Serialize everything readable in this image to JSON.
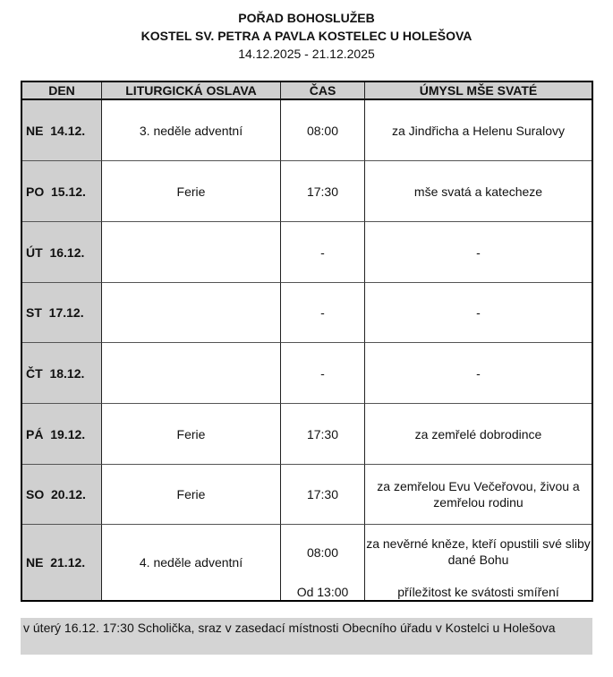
{
  "header": {
    "title": "POŘAD BOHOSLUŽEB",
    "church": "KOSTEL SV. PETRA A PAVLA KOSTELEC U HOLEŠOVA",
    "dates": "14.12.2025 - 21.12.2025"
  },
  "columns": [
    "DEN",
    "LITURGICKÁ OSLAVA",
    "ČAS",
    "ÚMYSL MŠE SVATÉ"
  ],
  "rows": [
    {
      "day": "NE  14.12.",
      "celebration": "3. neděle adventní",
      "time": "08:00",
      "intention": "za Jindřicha a Helenu Suralovy"
    },
    {
      "day": "PO  15.12.",
      "celebration": "Ferie",
      "time": "17:30",
      "intention": "mše svatá a katecheze"
    },
    {
      "day": "ÚT  16.12.",
      "celebration": "",
      "time": "-",
      "intention": "-"
    },
    {
      "day": "ST  17.12.",
      "celebration": "",
      "time": "-",
      "intention": "-"
    },
    {
      "day": "ČT  18.12.",
      "celebration": "",
      "time": "-",
      "intention": "-"
    },
    {
      "day": "PÁ  19.12.",
      "celebration": "Ferie",
      "time": "17:30",
      "intention": "za zemřelé dobrodince"
    },
    {
      "day": "SO  20.12.",
      "celebration": "Ferie",
      "time": "17:30",
      "intention": "za zemřelou Evu Večeřovou, živou a zemřelou rodinu"
    }
  ],
  "last_row": {
    "day": "NE  21.12.",
    "celebration": "4. neděle adventní",
    "time1": "08:00",
    "intention1": "za nevěrné kněze, kteří opustili své sliby dané Bohu",
    "time2": "Od 13:00",
    "intention2": "příležitost ke svátosti smíření"
  },
  "note": "v úterý 16.12. 17:30 Scholička, sraz v zasedací místnosti Obecního úřadu v Kostelci u Holešova"
}
